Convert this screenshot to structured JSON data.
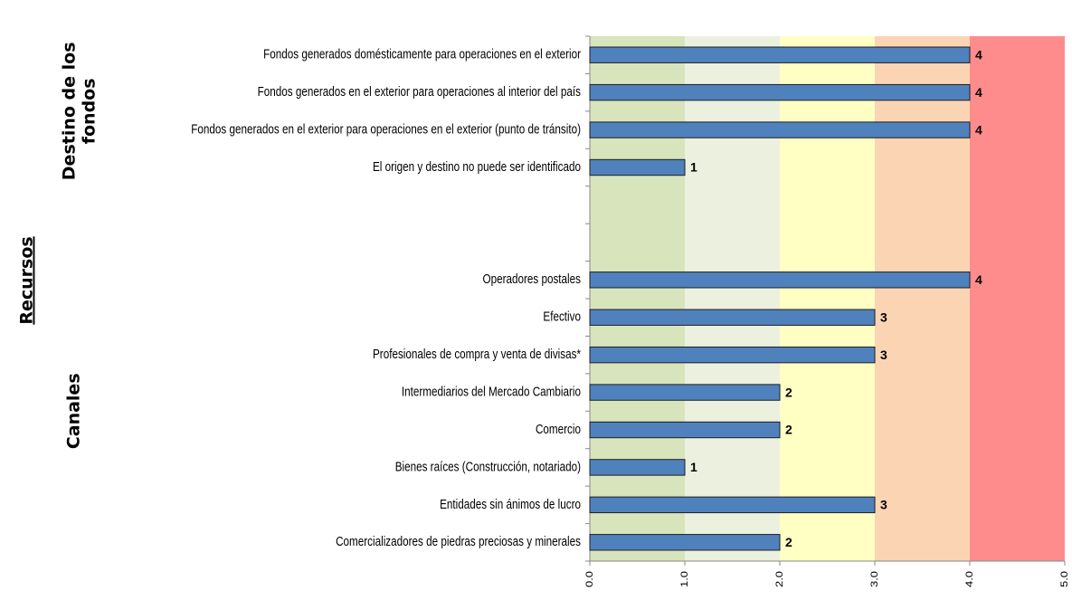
{
  "chart_data": {
    "type": "bar",
    "orientation": "horizontal",
    "super_label": "Recursos",
    "group_labels": [
      [
        "Destino de los",
        "fondos"
      ],
      [
        "Canales"
      ]
    ],
    "categories": [
      "Fondos generados domésticamente para operaciones en el exterior",
      "Fondos generados en el exterior para operaciones al interior del país",
      "Fondos generados en el exterior para operaciones en el exterior (punto de tránsito)",
      "El origen y destino no puede ser identificado",
      null,
      null,
      "Operadores postales",
      "Efectivo",
      "Profesionales de compra y venta de divisas*",
      "Intermediarios del Mercado Cambiario",
      "Comercio",
      "Bienes raíces (Construcción, notariado)",
      "Entidades sin ánimos de lucro",
      "Comercializadores de piedras preciosas y minerales"
    ],
    "values": [
      4,
      4,
      4,
      1,
      null,
      null,
      4,
      3,
      3,
      2,
      2,
      1,
      3,
      2
    ],
    "color": "#4f81bd",
    "xlim": [
      0,
      5
    ],
    "xticks": [
      {
        "value": 0,
        "label": "0.0"
      },
      {
        "value": 1,
        "label": "1.0"
      },
      {
        "value": 2,
        "label": "2.0"
      },
      {
        "value": 3,
        "label": "3.0"
      },
      {
        "value": 4,
        "label": "4.0"
      },
      {
        "value": 5,
        "label": "5.0"
      }
    ],
    "band_colors": [
      "#d8e4bc",
      "#ebf1de",
      "#ffffc4",
      "#fbd4b4",
      "#ff8c8c"
    ]
  }
}
